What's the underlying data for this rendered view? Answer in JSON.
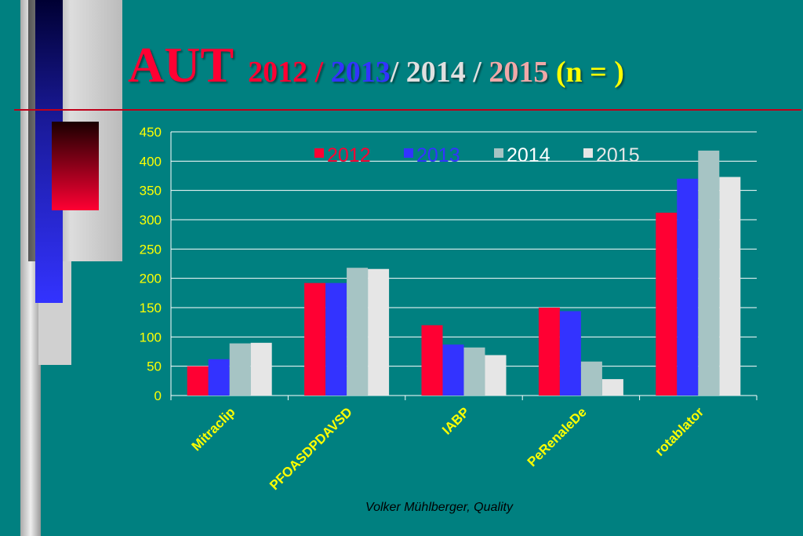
{
  "title": {
    "aut": "AUT",
    "y2012": "2012",
    "sep1": " / ",
    "y2013": "2013",
    "sep2": "/ 2014 / ",
    "y2015": "2015",
    "n": " (n = )"
  },
  "footer": "Volker Mühlberger, Quality",
  "colors": {
    "background": "#008080",
    "s2012": "#ff0033",
    "s2013": "#3333ff",
    "s2014": "#a6c4c4",
    "s2015": "#e6e6e6",
    "axis_text": "#ffff00"
  },
  "chart_data": {
    "type": "bar",
    "categories": [
      "Mitraclip",
      "PFOASDPDAVSD",
      "IABP",
      "PeRenaleDe",
      "rotablator"
    ],
    "series": [
      {
        "name": "2012",
        "values": [
          50,
          192,
          120,
          150,
          312
        ]
      },
      {
        "name": "2013",
        "values": [
          62,
          192,
          87,
          144,
          370
        ]
      },
      {
        "name": "2014",
        "values": [
          89,
          218,
          82,
          58,
          418
        ]
      },
      {
        "name": "2015",
        "values": [
          90,
          216,
          69,
          28,
          373
        ]
      }
    ],
    "ylim": [
      0,
      450
    ],
    "yticks": [
      0,
      50,
      100,
      150,
      200,
      250,
      300,
      350,
      400,
      450
    ],
    "grid": true,
    "legend": "top-center"
  }
}
